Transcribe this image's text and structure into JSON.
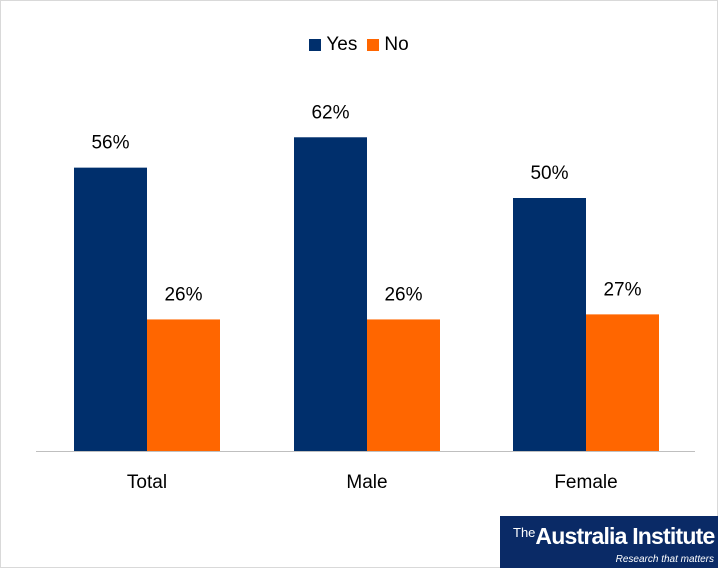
{
  "chart_data": {
    "type": "bar",
    "categories": [
      "Total",
      "Male",
      "Female"
    ],
    "series": [
      {
        "name": "Yes",
        "values": [
          56,
          62,
          50
        ],
        "labels": [
          "56%",
          "62%",
          "50%"
        ],
        "color": "#002f6c"
      },
      {
        "name": "No",
        "values": [
          26,
          26,
          27
        ],
        "labels": [
          "26%",
          "26%",
          "27%"
        ],
        "color": "#ff6600"
      }
    ],
    "title": "",
    "xlabel": "",
    "ylabel": "",
    "ylim": [
      0,
      70
    ],
    "grid": false,
    "legend": "top-center"
  },
  "logo": {
    "the": "The",
    "name": "Australia Institute",
    "tagline": "Research that matters"
  }
}
